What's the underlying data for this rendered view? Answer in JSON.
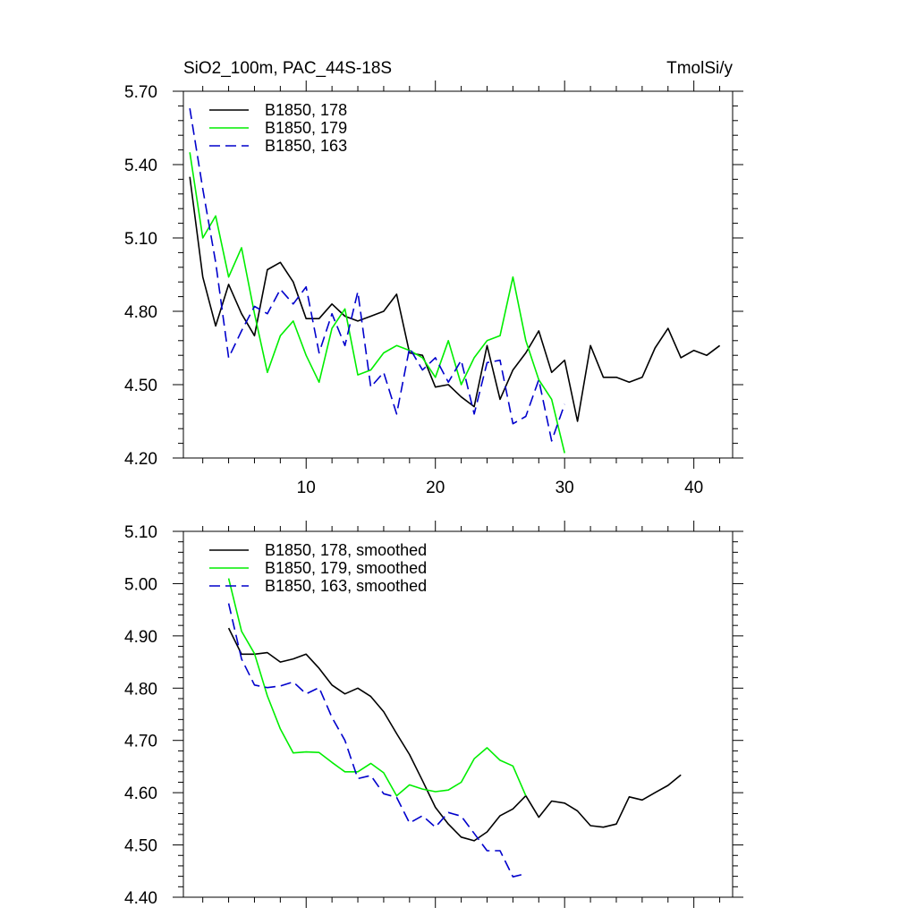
{
  "page": {
    "title_left": "SiO2_100m, PAC_44S-18S",
    "title_right": "TmolSi/y"
  },
  "chart_data": [
    {
      "type": "line",
      "name": "raw",
      "xlim": [
        0.5,
        43
      ],
      "ylim": [
        4.2,
        5.7
      ],
      "xticks": [
        10,
        20,
        30,
        40
      ],
      "yticks": [
        4.2,
        4.5,
        4.8,
        5.1,
        5.4,
        5.7
      ],
      "ytick_labels": [
        "4.20",
        "4.50",
        "4.80",
        "5.10",
        "5.40",
        "5.70"
      ],
      "legend_position": "top-left",
      "series": [
        {
          "name": "B1850, 178",
          "color": "#000000",
          "dash": "solid",
          "x": [
            1,
            2,
            3,
            4,
            5,
            6,
            7,
            8,
            9,
            10,
            11,
            12,
            13,
            14,
            15,
            16,
            17,
            18,
            19,
            20,
            21,
            22,
            23,
            24,
            25,
            26,
            27,
            28,
            29,
            30,
            31,
            32,
            33,
            34,
            35,
            36,
            37,
            38,
            39,
            40,
            41,
            42
          ],
          "y": [
            5.35,
            4.94,
            4.74,
            4.91,
            4.79,
            4.7,
            4.97,
            5.0,
            4.92,
            4.77,
            4.77,
            4.83,
            4.78,
            4.76,
            4.78,
            4.8,
            4.87,
            4.63,
            4.62,
            4.49,
            4.5,
            4.45,
            4.41,
            4.66,
            4.44,
            4.56,
            4.63,
            4.72,
            4.55,
            4.6,
            4.35,
            4.66,
            4.53,
            4.53,
            4.51,
            4.53,
            4.65,
            4.73,
            4.61,
            4.64,
            4.62,
            4.66
          ]
        },
        {
          "name": "B1850, 179",
          "color": "#00ee00",
          "dash": "solid",
          "x": [
            1,
            2,
            3,
            4,
            5,
            6,
            7,
            8,
            9,
            10,
            11,
            12,
            13,
            14,
            15,
            16,
            17,
            18,
            19,
            20,
            21,
            22,
            23,
            24,
            25,
            26,
            27,
            28,
            29,
            30
          ],
          "y": [
            5.45,
            5.1,
            5.19,
            4.94,
            5.06,
            4.79,
            4.55,
            4.7,
            4.76,
            4.62,
            4.51,
            4.73,
            4.81,
            4.54,
            4.56,
            4.63,
            4.66,
            4.64,
            4.61,
            4.53,
            4.68,
            4.5,
            4.61,
            4.68,
            4.7,
            4.94,
            4.68,
            4.52,
            4.44,
            4.22
          ]
        },
        {
          "name": "B1850, 163",
          "color": "#0000cc",
          "dash": "dashed",
          "x": [
            1,
            2,
            3,
            4,
            5,
            6,
            7,
            8,
            9,
            10,
            11,
            12,
            13,
            14,
            15,
            16,
            17,
            18,
            19,
            20,
            21,
            22,
            23,
            24,
            25,
            26,
            27,
            28,
            29,
            30
          ],
          "y": [
            5.63,
            5.3,
            5.0,
            4.61,
            4.72,
            4.82,
            4.79,
            4.89,
            4.83,
            4.9,
            4.63,
            4.79,
            4.66,
            4.88,
            4.49,
            4.55,
            4.38,
            4.65,
            4.56,
            4.61,
            4.51,
            4.6,
            4.38,
            4.59,
            4.6,
            4.34,
            4.37,
            4.52,
            4.27,
            4.42
          ]
        }
      ]
    },
    {
      "type": "line",
      "name": "smoothed",
      "xlim": [
        0.5,
        43
      ],
      "ylim": [
        4.4,
        5.1
      ],
      "xticks": [
        10,
        20,
        30,
        40
      ],
      "yticks": [
        4.4,
        4.5,
        4.6,
        4.7,
        4.8,
        4.9,
        5.0,
        5.1
      ],
      "ytick_labels": [
        "4.40",
        "4.50",
        "4.60",
        "4.70",
        "4.80",
        "4.90",
        "5.00",
        "5.10"
      ],
      "legend_position": "top-left",
      "series": [
        {
          "name": "B1850, 178, smoothed",
          "color": "#000000",
          "dash": "solid",
          "x": [
            4,
            5,
            6,
            7,
            8,
            9,
            10,
            11,
            12,
            13,
            14,
            15,
            16,
            17,
            18,
            19,
            20,
            21,
            22,
            23,
            24,
            25,
            26,
            27,
            28,
            29,
            30,
            31,
            32,
            33,
            34,
            35,
            36,
            37,
            38,
            39
          ],
          "y": [
            4.915,
            4.865,
            4.865,
            4.868,
            4.85,
            4.856,
            4.865,
            4.838,
            4.806,
            4.789,
            4.8,
            4.784,
            4.755,
            4.713,
            4.673,
            4.623,
            4.572,
            4.54,
            4.515,
            4.508,
            4.525,
            4.556,
            4.569,
            4.594,
            4.553,
            4.584,
            4.58,
            4.565,
            4.537,
            4.534,
            4.54,
            4.592,
            4.586,
            4.6,
            4.614,
            4.634
          ]
        },
        {
          "name": "B1850, 179, smoothed",
          "color": "#00ee00",
          "dash": "solid",
          "x": [
            4,
            5,
            6,
            7,
            8,
            9,
            10,
            11,
            12,
            13,
            14,
            15,
            16,
            17,
            18,
            19,
            20,
            21,
            22,
            23,
            24,
            25,
            26,
            27
          ],
          "y": [
            5.01,
            4.909,
            4.866,
            4.785,
            4.722,
            4.676,
            4.678,
            4.677,
            4.658,
            4.64,
            4.64,
            4.656,
            4.638,
            4.594,
            4.615,
            4.607,
            4.602,
            4.605,
            4.62,
            4.665,
            4.686,
            4.662,
            4.651,
            4.594
          ]
        },
        {
          "name": "B1850, 163, smoothed",
          "color": "#0000cc",
          "dash": "dashed",
          "x": [
            4,
            5,
            6,
            7,
            8,
            9,
            10,
            11,
            12,
            13,
            14,
            15,
            16,
            17,
            18,
            19,
            20,
            21,
            22,
            23,
            24,
            25,
            26,
            27
          ],
          "y": [
            4.962,
            4.856,
            4.806,
            4.801,
            4.804,
            4.812,
            4.789,
            4.801,
            4.744,
            4.7,
            4.627,
            4.633,
            4.598,
            4.591,
            4.542,
            4.556,
            4.534,
            4.562,
            4.555,
            4.522,
            4.489,
            4.489,
            4.439,
            4.445
          ]
        }
      ]
    }
  ]
}
